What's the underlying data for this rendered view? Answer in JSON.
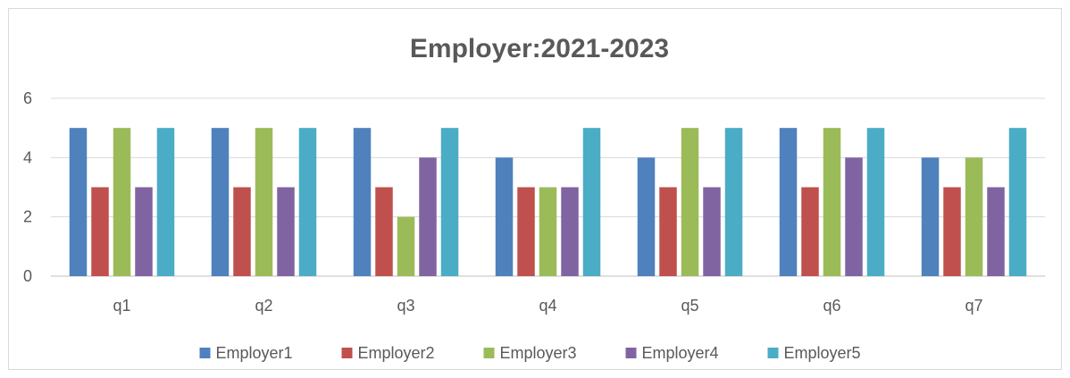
{
  "chart_data": {
    "type": "bar",
    "title": "Employer:2021-2023",
    "xlabel": "",
    "ylabel": "",
    "categories": [
      "q1",
      "q2",
      "q3",
      "q4",
      "q5",
      "q6",
      "q7"
    ],
    "ylim": [
      0,
      6
    ],
    "yticks": [
      "0",
      "2",
      "4",
      "6"
    ],
    "grid": true,
    "legend_position": "bottom",
    "series": [
      {
        "name": "Employer1",
        "color": "#4F81BD",
        "values": [
          5,
          5,
          5,
          4,
          4,
          5,
          4
        ]
      },
      {
        "name": "Employer2",
        "color": "#C0504D",
        "values": [
          3,
          3,
          3,
          3,
          3,
          3,
          3
        ]
      },
      {
        "name": "Employer3",
        "color": "#9BBB59",
        "values": [
          5,
          5,
          2,
          3,
          5,
          5,
          4
        ]
      },
      {
        "name": "Employer4",
        "color": "#8064A2",
        "values": [
          3,
          3,
          4,
          3,
          3,
          4,
          3
        ]
      },
      {
        "name": "Employer5",
        "color": "#4BACC6",
        "values": [
          5,
          5,
          5,
          5,
          5,
          5,
          5
        ]
      }
    ]
  }
}
